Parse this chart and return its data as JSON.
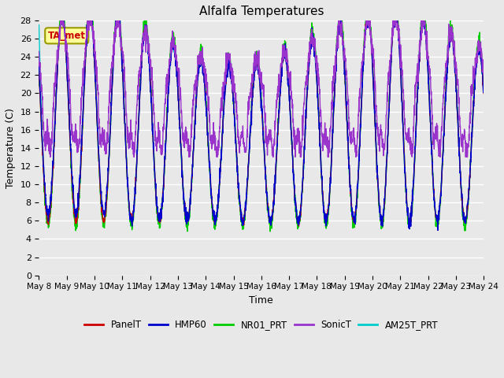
{
  "title": "Alfalfa Temperatures",
  "xlabel": "Time",
  "ylabel": "Temperature (C)",
  "ylim": [
    0,
    28
  ],
  "yticks": [
    0,
    2,
    4,
    6,
    8,
    10,
    12,
    14,
    16,
    18,
    20,
    22,
    24,
    26,
    28
  ],
  "bg_color": "#e8e8e8",
  "legend_labels": [
    "PanelT",
    "HMP60",
    "NR01_PRT",
    "SonicT",
    "AM25T_PRT"
  ],
  "legend_colors": [
    "#cc0000",
    "#0000cc",
    "#00cc00",
    "#9933cc",
    "#00cccc"
  ],
  "annotation_text": "TA_met",
  "annotation_color": "#cc0000",
  "annotation_bg": "#ffff99",
  "n_days": 16,
  "start_day": 8,
  "points_per_day": 144,
  "figwidth": 6.4,
  "figheight": 4.8,
  "dpi": 100
}
